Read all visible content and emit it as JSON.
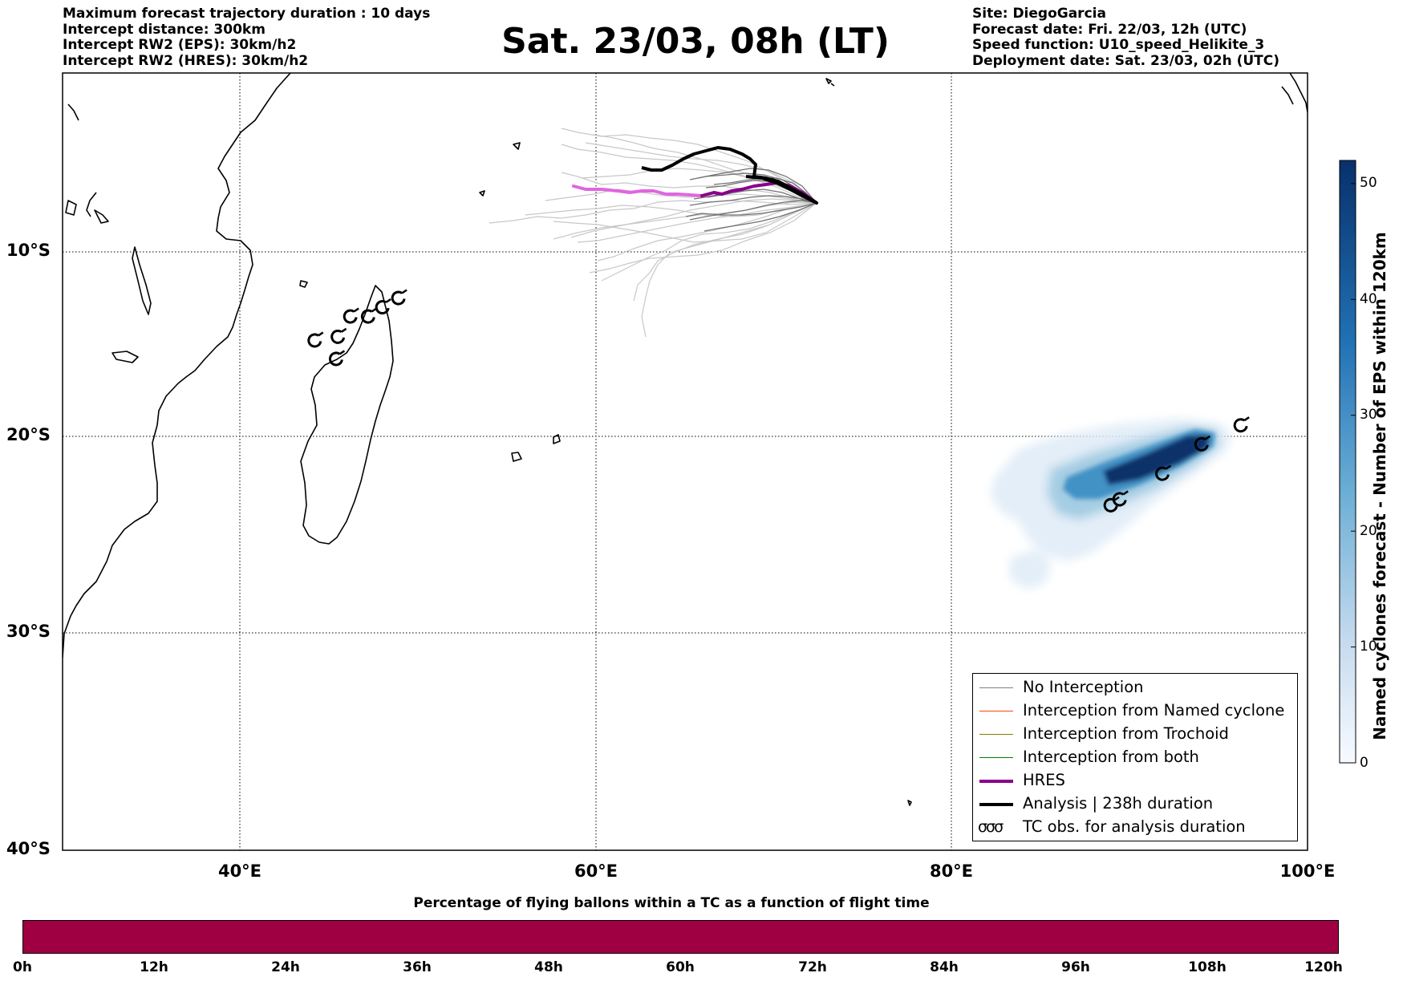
{
  "header": {
    "left_lines": [
      "Maximum forecast trajectory duration : 10 days",
      "Intercept distance: 300km",
      "Intercept RW2 (EPS):  30km/h2",
      "Intercept RW2 (HRES): 30km/h2"
    ],
    "right_lines": [
      "Site: DiegoGarcia",
      "Forecast date: Fri. 22/03, 12h (UTC)",
      "Speed function: U10_speed_Helikite_3",
      "Deployment date: Sat. 23/03, 02h (UTC)"
    ],
    "title": "Sat. 23/03, 08h (LT)"
  },
  "map": {
    "lon_ticks": [
      "40°E",
      "60°E",
      "80°E",
      "100°E"
    ],
    "lat_ticks": [
      "10°S",
      "20°S",
      "30°S",
      "40°S"
    ],
    "extent": {
      "lon_min": 30,
      "lon_max": 100,
      "lat_min": -40,
      "lat_max": 0.8
    },
    "colors": {
      "hres": "#8b008b",
      "hres_light": "#e066e0",
      "analysis": "#000000",
      "no_interception": "#808080",
      "named_cyclone": "#ff4500",
      "trochoid": "#808000",
      "both": "#008000",
      "density_dark": "#08306b",
      "density_light": "#deebf7"
    },
    "tc_obs": [
      {
        "lon": 48.9,
        "lat": -12.5
      },
      {
        "lon": 48.0,
        "lat": -13.0
      },
      {
        "lon": 47.2,
        "lat": -13.5
      },
      {
        "lon": 46.2,
        "lat": -13.5
      },
      {
        "lon": 45.5,
        "lat": -14.6
      },
      {
        "lon": 44.2,
        "lat": -14.8
      },
      {
        "lon": 45.4,
        "lat": -15.8
      },
      {
        "lon": 96.2,
        "lat": -19.4
      },
      {
        "lon": 94.0,
        "lat": -20.4
      },
      {
        "lon": 91.8,
        "lat": -21.9
      },
      {
        "lon": 89.4,
        "lat": -23.2
      },
      {
        "lon": 88.9,
        "lat": -23.5
      }
    ]
  },
  "legend": {
    "items": [
      {
        "label": "No Interception",
        "color": "#808080",
        "width": 1.2
      },
      {
        "label": "Interception from Named cyclone",
        "color": "#ff4500",
        "width": 1.2
      },
      {
        "label": "Interception from Trochoid",
        "color": "#808000",
        "width": 1.2
      },
      {
        "label": "Interception from both",
        "color": "#008000",
        "width": 1.2
      },
      {
        "label": "HRES",
        "color": "#8b008b",
        "width": 4
      },
      {
        "label": "Analysis | 238h duration",
        "color": "#000000",
        "width": 4
      }
    ],
    "tc_symbol": "σσσ",
    "tc_label": "TC obs. for analysis duration"
  },
  "vertical_colorbar": {
    "label": "Named cyclones forecast - Number of EPS within 120km",
    "ticks": [
      "0",
      "10",
      "20",
      "30",
      "40",
      "50"
    ],
    "min": 0,
    "max": 52
  },
  "horizontal_colorbar": {
    "title": "Percentage of flying ballons within a TC as a function of flight time",
    "ticks": [
      "0h",
      "12h",
      "24h",
      "36h",
      "48h",
      "60h",
      "72h",
      "84h",
      "96h",
      "108h",
      "120h"
    ],
    "color": "#9e0041"
  }
}
